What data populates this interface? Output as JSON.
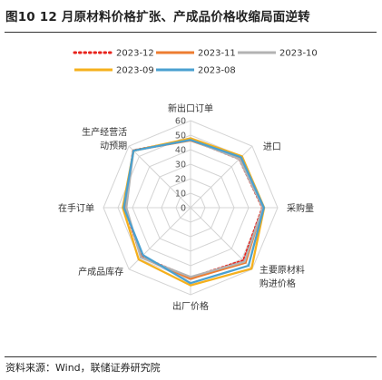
{
  "title": "图10 12 月原材料价格扩张、产成品价格收缩局面逆转",
  "source": "资料来源：Wind，联储证券研究院",
  "chart_data": {
    "type": "radar",
    "axes": [
      "新出口订单",
      "进口",
      "采购量",
      "主要原材料购进价格",
      "出厂价格",
      "产成品库存",
      "在手订单",
      "生产经营活动预期"
    ],
    "rlim": [
      0,
      60
    ],
    "ticks": [
      0,
      10,
      20,
      30,
      40,
      50,
      60
    ],
    "legend_position": "top",
    "series": [
      {
        "name": "2023-12",
        "color": "#e8231c",
        "style": "dotted",
        "values": [
          47.0,
          47.5,
          49.5,
          51.5,
          48.2,
          48.0,
          45.2,
          55.8
        ]
      },
      {
        "name": "2023-11",
        "color": "#ed7d31",
        "style": "solid",
        "values": [
          46.3,
          48.4,
          49.7,
          53.6,
          49.0,
          48.2,
          44.8,
          55.8
        ]
      },
      {
        "name": "2023-10",
        "color": "#b3b3b3",
        "style": "solid",
        "values": [
          46.8,
          47.5,
          49.8,
          52.6,
          47.7,
          48.5,
          44.2,
          55.6
        ]
      },
      {
        "name": "2023-09",
        "color": "#f5b01d",
        "style": "solid",
        "values": [
          47.8,
          50.1,
          50.7,
          59.4,
          53.5,
          50.5,
          46.7,
          55.5
        ]
      },
      {
        "name": "2023-08",
        "color": "#4aa0d0",
        "style": "solid",
        "values": [
          46.7,
          49.2,
          50.5,
          56.5,
          52.0,
          46.3,
          45.9,
          55.6
        ]
      }
    ]
  }
}
